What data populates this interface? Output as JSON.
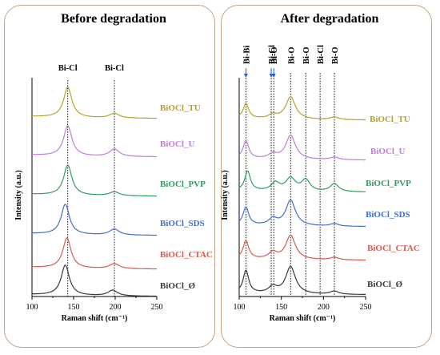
{
  "colors": {
    "TU": "#b8a12b",
    "U": "#c07ce0",
    "PVP": "#2e9d5f",
    "SDS": "#3f6fd0",
    "CTAC": "#d95a4e",
    "O": "#3a3a3a"
  },
  "chart_data": [
    {
      "type": "line",
      "title": "Before degradation",
      "xlabel": "Raman shift (cm⁻¹)",
      "ylabel": "Intensity (a.u.)",
      "xlim": [
        100,
        250
      ],
      "xticks": [
        100,
        150,
        200,
        250
      ],
      "peak_markers": [
        {
          "label": "Bi-Cl",
          "x": 143
        },
        {
          "label": "Bi-Cl",
          "x": 199
        }
      ],
      "series": [
        {
          "name": "BiOCl_TU",
          "color_key": "TU",
          "peaks": [
            {
              "x": 143,
              "h": 0.9,
              "w": 6
            },
            {
              "x": 199,
              "h": 0.14,
              "w": 7
            }
          ]
        },
        {
          "name": "BiOCl_U",
          "color_key": "U",
          "peaks": [
            {
              "x": 143,
              "h": 0.9,
              "w": 6
            },
            {
              "x": 199,
              "h": 0.22,
              "w": 7
            }
          ]
        },
        {
          "name": "BiOCl_PVP",
          "color_key": "PVP",
          "peaks": [
            {
              "x": 143,
              "h": 0.9,
              "w": 6
            },
            {
              "x": 199,
              "h": 0.12,
              "w": 7
            }
          ]
        },
        {
          "name": "BiOCl_SDS",
          "color_key": "SDS",
          "peaks": [
            {
              "x": 140,
              "h": 0.9,
              "w": 6
            },
            {
              "x": 199,
              "h": 0.18,
              "w": 7
            }
          ]
        },
        {
          "name": "BiOCl_CTAC",
          "color_key": "CTAC",
          "peaks": [
            {
              "x": 142,
              "h": 0.9,
              "w": 6
            },
            {
              "x": 199,
              "h": 0.15,
              "w": 7
            }
          ]
        },
        {
          "name": "BiOCl_Ø",
          "color_key": "O",
          "peaks": [
            {
              "x": 140,
              "h": 0.9,
              "w": 6
            },
            {
              "x": 197,
              "h": 0.17,
              "w": 7
            }
          ]
        }
      ]
    },
    {
      "type": "line",
      "title": "After degradation",
      "xlabel": "Raman shift (cm⁻¹)",
      "ylabel": "Intensity (a.u.)",
      "xlim": [
        100,
        250
      ],
      "xticks": [
        100,
        150,
        200,
        250
      ],
      "peak_markers": [
        {
          "label": "Bi-Bi",
          "x": 108,
          "arrow": true
        },
        {
          "label": "Bi-Cl",
          "x": 138,
          "arrow": true
        },
        {
          "label": "Bi-O",
          "x": 141,
          "arrow": true
        },
        {
          "label": "Bi-O",
          "x": 161
        },
        {
          "label": "Bi-O",
          "x": 179
        },
        {
          "label": "Bi-Cl",
          "x": 196
        },
        {
          "label": "Bi-O",
          "x": 213
        }
      ],
      "series": [
        {
          "name": "BiOCl_TU",
          "color_key": "TU",
          "peaks": [
            {
              "x": 108,
              "h": 0.45,
              "w": 4
            },
            {
              "x": 140,
              "h": 0.12,
              "w": 6
            },
            {
              "x": 161,
              "h": 0.7,
              "w": 7
            },
            {
              "x": 213,
              "h": 0.08,
              "w": 6
            }
          ]
        },
        {
          "name": "BiOCl_U",
          "color_key": "U",
          "peaks": [
            {
              "x": 108,
              "h": 0.55,
              "w": 4
            },
            {
              "x": 140,
              "h": 0.15,
              "w": 6
            },
            {
              "x": 161,
              "h": 0.75,
              "w": 7
            },
            {
              "x": 213,
              "h": 0.08,
              "w": 6
            }
          ]
        },
        {
          "name": "BiOCl_PVP",
          "color_key": "PVP",
          "peaks": [
            {
              "x": 110,
              "h": 0.6,
              "w": 4
            },
            {
              "x": 143,
              "h": 0.25,
              "w": 6
            },
            {
              "x": 161,
              "h": 0.4,
              "w": 7
            },
            {
              "x": 179,
              "h": 0.35,
              "w": 6
            },
            {
              "x": 213,
              "h": 0.25,
              "w": 6
            }
          ]
        },
        {
          "name": "BiOCl_SDS",
          "color_key": "SDS",
          "peaks": [
            {
              "x": 108,
              "h": 0.55,
              "w": 4
            },
            {
              "x": 140,
              "h": 0.2,
              "w": 6
            },
            {
              "x": 161,
              "h": 0.8,
              "w": 7
            },
            {
              "x": 213,
              "h": 0.08,
              "w": 6
            }
          ]
        },
        {
          "name": "BiOCl_CTAC",
          "color_key": "CTAC",
          "peaks": [
            {
              "x": 108,
              "h": 0.55,
              "w": 4
            },
            {
              "x": 140,
              "h": 0.2,
              "w": 6
            },
            {
              "x": 161,
              "h": 0.75,
              "w": 7
            },
            {
              "x": 213,
              "h": 0.08,
              "w": 6
            }
          ]
        },
        {
          "name": "BiOCl_Ø",
          "color_key": "O",
          "peaks": [
            {
              "x": 108,
              "h": 0.7,
              "w": 4
            },
            {
              "x": 140,
              "h": 0.2,
              "w": 6
            },
            {
              "x": 161,
              "h": 0.85,
              "w": 7
            },
            {
              "x": 213,
              "h": 0.1,
              "w": 6
            }
          ]
        }
      ]
    }
  ]
}
